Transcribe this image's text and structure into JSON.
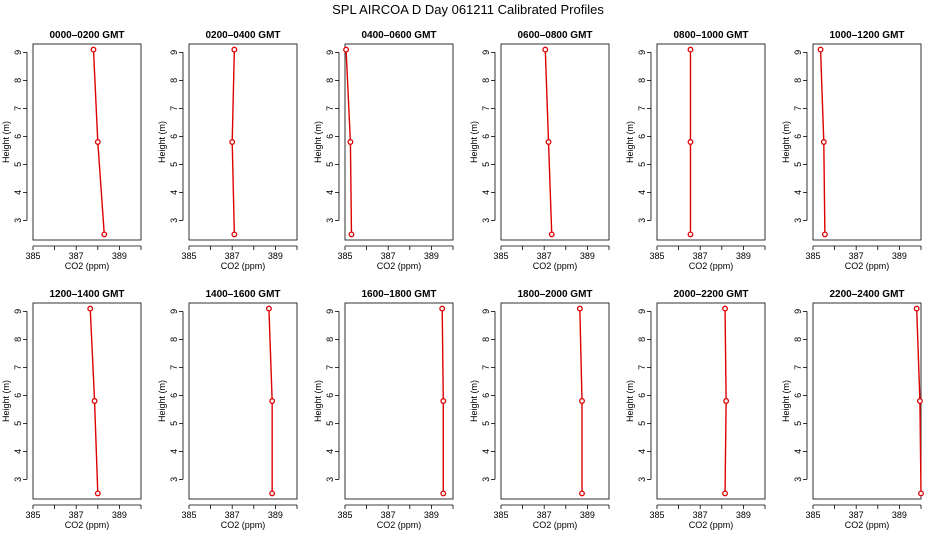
{
  "title": "SPL AIRCOA D  Day 061211  Calibrated Profiles",
  "colors": {
    "series": "#dd0000",
    "axis": "#000000"
  },
  "chart_data": {
    "type": "line",
    "layout": "small-multiples 2 rows x 6 columns",
    "shared_axes": {
      "xlabel": "CO2 (ppm)",
      "ylabel": "Height (m)",
      "xlim": [
        385,
        390
      ],
      "xticks": [
        385,
        386,
        387,
        388,
        389,
        390
      ],
      "xtick_labels": [
        "385",
        "",
        "387",
        "",
        "389",
        ""
      ],
      "ylim": [
        2.3,
        9.3
      ],
      "yticks": [
        3,
        4,
        5,
        6,
        7,
        8,
        9
      ],
      "ytick_labels": [
        "3",
        "4",
        "5",
        "6",
        "7",
        "8",
        "9"
      ],
      "grid": false
    },
    "panels": [
      {
        "title": "0000–0200 GMT",
        "heights": [
          2.5,
          5.8,
          9.1
        ],
        "co2": [
          388.3,
          388.0,
          387.8
        ]
      },
      {
        "title": "0200–0400 GMT",
        "heights": [
          2.5,
          5.8,
          9.1
        ],
        "co2": [
          387.1,
          387.0,
          387.1
        ]
      },
      {
        "title": "0400–0600 GMT",
        "heights": [
          2.5,
          5.8,
          9.1
        ],
        "co2": [
          385.3,
          385.25,
          385.05
        ]
      },
      {
        "title": "0600–0800 GMT",
        "heights": [
          2.5,
          5.8,
          9.1
        ],
        "co2": [
          387.35,
          387.2,
          387.05
        ]
      },
      {
        "title": "0800–1000 GMT",
        "heights": [
          2.5,
          5.8,
          9.1
        ],
        "co2": [
          386.55,
          386.55,
          386.55
        ]
      },
      {
        "title": "1000–1200 GMT",
        "heights": [
          2.5,
          5.8,
          9.1
        ],
        "co2": [
          385.55,
          385.5,
          385.35
        ]
      },
      {
        "title": "1200–1400 GMT",
        "heights": [
          2.5,
          5.8,
          9.1
        ],
        "co2": [
          388.0,
          387.85,
          387.65
        ]
      },
      {
        "title": "1400–1600 GMT",
        "heights": [
          2.5,
          5.8,
          9.1
        ],
        "co2": [
          388.85,
          388.85,
          388.7
        ]
      },
      {
        "title": "1600–1800 GMT",
        "heights": [
          2.5,
          5.8,
          9.1
        ],
        "co2": [
          389.55,
          389.55,
          389.5
        ]
      },
      {
        "title": "1800–2000 GMT",
        "heights": [
          2.5,
          5.8,
          9.1
        ],
        "co2": [
          388.75,
          388.75,
          388.65
        ]
      },
      {
        "title": "2000–2200 GMT",
        "heights": [
          2.5,
          5.8,
          9.1
        ],
        "co2": [
          388.15,
          388.2,
          388.15
        ]
      },
      {
        "title": "2200–2400 GMT",
        "heights": [
          2.5,
          5.8,
          9.1
        ],
        "co2": [
          390.0,
          389.95,
          389.8
        ]
      }
    ]
  }
}
